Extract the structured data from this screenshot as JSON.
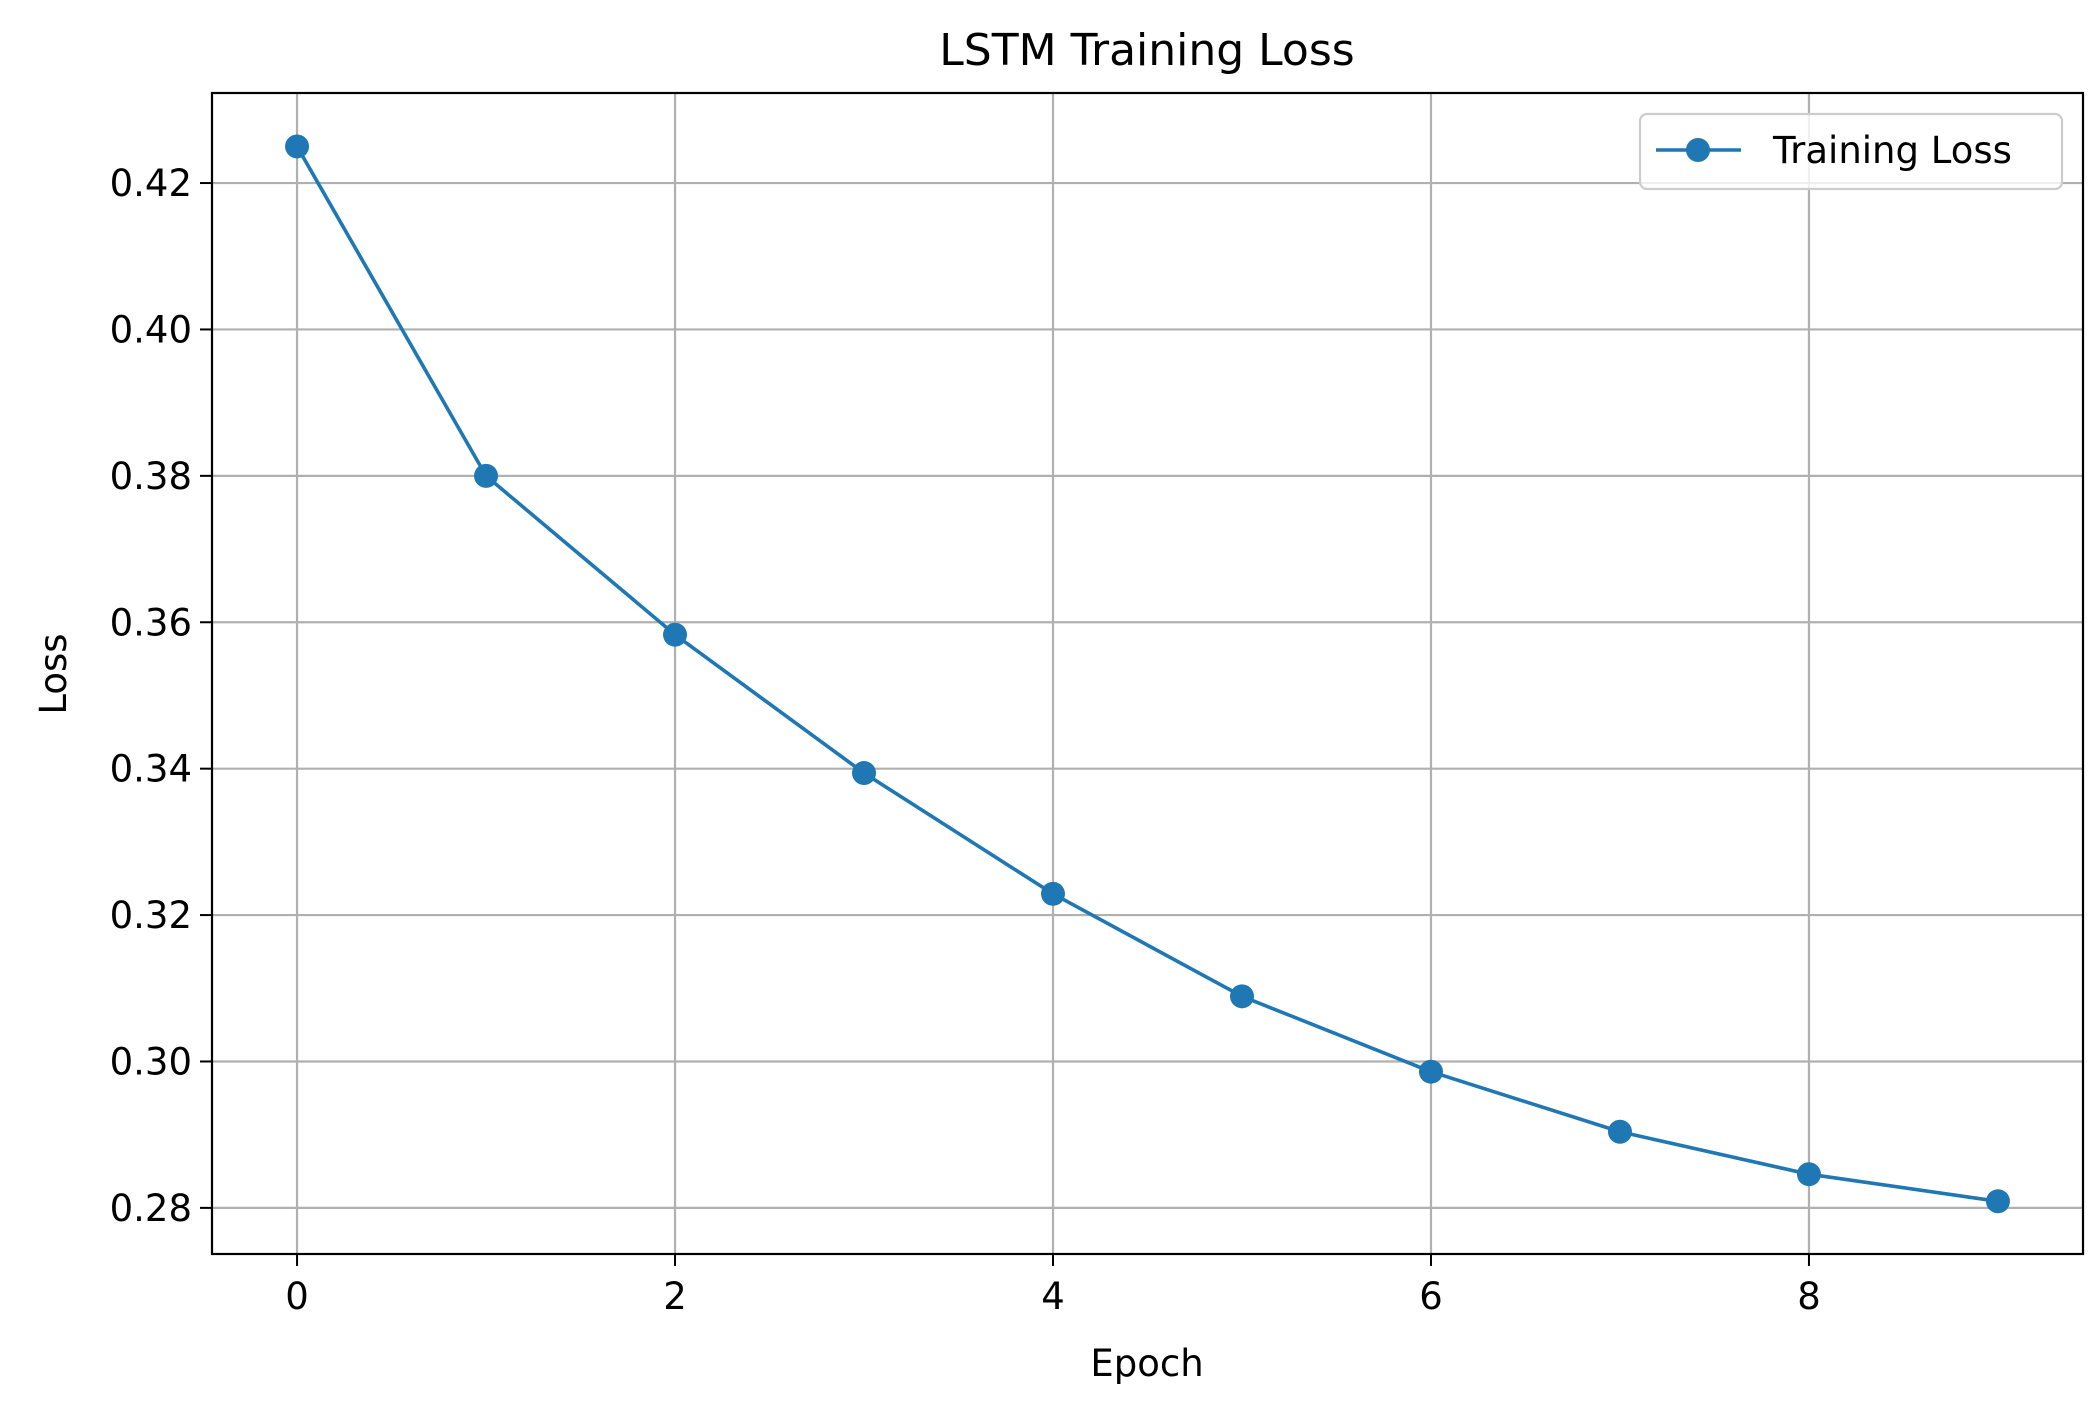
{
  "chart_data": {
    "type": "line",
    "title": "LSTM Training Loss",
    "xlabel": "Epoch",
    "ylabel": "Loss",
    "xlim": [
      -0.45,
      9.45
    ],
    "ylim": [
      0.2737,
      0.4323
    ],
    "xticks": [
      0,
      2,
      4,
      6,
      8
    ],
    "xtick_labels": [
      "0",
      "2",
      "4",
      "6",
      "8"
    ],
    "yticks": [
      0.28,
      0.3,
      0.32,
      0.34,
      0.36,
      0.38,
      0.4,
      0.42
    ],
    "ytick_labels": [
      "0.28",
      "0.30",
      "0.32",
      "0.34",
      "0.36",
      "0.38",
      "0.40",
      "0.42"
    ],
    "grid": true,
    "legend_position": "top-right",
    "x": [
      0,
      1,
      2,
      3,
      4,
      5,
      6,
      7,
      8,
      9
    ],
    "series": [
      {
        "name": "Training Loss",
        "color": "#1f77b4",
        "marker": "circle",
        "values": [
          0.425,
          0.38,
          0.3583,
          0.3394,
          0.3229,
          0.3089,
          0.2986,
          0.2904,
          0.2846,
          0.2809
        ]
      }
    ]
  }
}
